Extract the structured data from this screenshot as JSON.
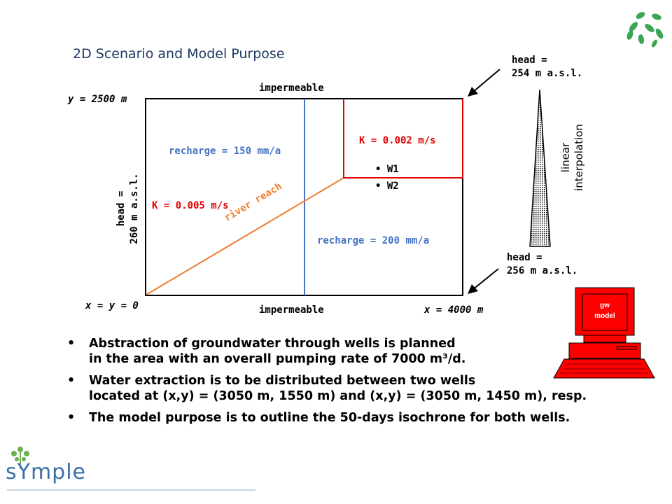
{
  "title": "2D Scenario and Model Purpose",
  "domain_labels": {
    "top_boundary": "impermeable",
    "bottom_boundary": "impermeable",
    "y_max": "y = 2500 m",
    "origin": "x = y = 0",
    "x_max": "x = 4000 m",
    "left_head_line1": "head =",
    "left_head_line2": "260 m a.s.l."
  },
  "zones": {
    "recharge_left": "recharge = 150 mm/a",
    "recharge_right": "recharge = 200 mm/a",
    "k_main": "K = 0.005 m/s",
    "k_zone": "K = 0.002 m/s",
    "river": "river reach"
  },
  "wells": [
    {
      "label": "W1"
    },
    {
      "label": "W2"
    }
  ],
  "right_boundary": {
    "top_head_line1": "head =",
    "top_head_line2": "254 m a.s.l.",
    "bottom_head_line1": "head =",
    "bottom_head_line2": "256 m a.s.l.",
    "interp_line1": "linear",
    "interp_line2": "interpolation"
  },
  "computer": {
    "line1": "gw",
    "line2": "model"
  },
  "bullets": [
    {
      "line1": "Abstraction of groundwater through wells is planned",
      "line2": "in the area with an overall pumping rate of 7000 m³/d."
    },
    {
      "line1": "Water extraction is to be distributed between two wells",
      "line2": "located at (x,y) = (3050 m, 1550 m) and (x,y) = (3050 m, 1450 m), resp."
    },
    {
      "line1": "The model purpose is to outline the 50-days isochrone for both wells.",
      "line2": ""
    }
  ],
  "logo": "sYmple",
  "colors": {
    "river": "#ed7d31",
    "divider": "#4472c4",
    "k_zone": "#e00000",
    "computer": "#ff0000"
  }
}
